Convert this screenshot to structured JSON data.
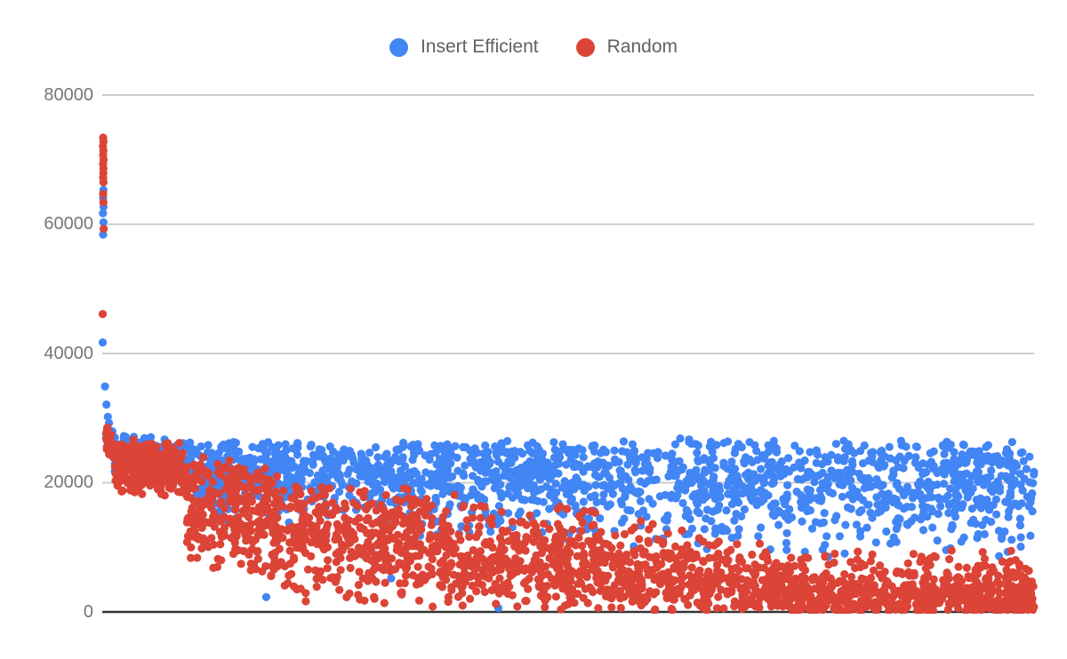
{
  "legend": {
    "items": [
      {
        "label": "Insert Efficient",
        "color": "#4285F4"
      },
      {
        "label": "Random",
        "color": "#DB4437"
      }
    ]
  },
  "chart_data": {
    "type": "scatter",
    "title": "",
    "legend_position": "top",
    "background": "#ffffff",
    "point_radius": 4.6,
    "seed": 1337,
    "y_axis": {
      "min": 0,
      "max": 80000,
      "tick_labels": [
        "80000",
        "60000",
        "40000",
        "20000",
        "0"
      ],
      "tick_values": [
        80000,
        60000,
        40000,
        20000,
        0
      ],
      "grid_color": "#cccccc",
      "baseline_color": "#333333",
      "label_color": "#757575",
      "grid_on": true
    },
    "x_axis": {
      "tick_labels": [],
      "x_unit": "fraction_of_plot_width"
    },
    "series": [
      {
        "name": "Insert Efficient",
        "color": "#4285F4",
        "points_outliers": [
          {
            "x": 0.0012,
            "v": 65300
          },
          {
            "x": 0.001,
            "v": 64100
          },
          {
            "x": 0.0014,
            "v": 62700
          },
          {
            "x": 0.0008,
            "v": 61700
          },
          {
            "x": 0.0012,
            "v": 60300
          },
          {
            "x": 0.001,
            "v": 58400
          },
          {
            "x": 0.0005,
            "v": 41700
          },
          {
            "x": 0.003,
            "v": 34900
          },
          {
            "x": 0.0045,
            "v": 32100
          },
          {
            "x": 0.006,
            "v": 30200
          },
          {
            "x": 0.176,
            "v": 2300
          },
          {
            "x": 0.31,
            "v": 5200
          },
          {
            "x": 0.425,
            "v": 600
          }
        ],
        "distribution_bands": [
          {
            "x0": 0.004,
            "x1": 0.012,
            "n": 20,
            "top0": 33000,
            "top1": 28500,
            "bot0": 25500,
            "bot1": 22000,
            "skew": 0
          },
          {
            "x0": 0.012,
            "x1": 0.1,
            "n": 170,
            "top0": 28000,
            "top1": 26500,
            "bot0": 20000,
            "bot1": 19000,
            "skew": -0.4
          },
          {
            "x0": 0.1,
            "x1": 0.3,
            "n": 400,
            "top0": 26500,
            "top1": 26000,
            "bot0": 14000,
            "bot1": 12500,
            "skew": -0.5
          },
          {
            "x0": 0.3,
            "x1": 0.62,
            "n": 600,
            "top0": 26500,
            "top1": 26500,
            "bot0": 11000,
            "bot1": 9500,
            "skew": -0.5
          },
          {
            "x0": 0.62,
            "x1": 1.0,
            "n": 730,
            "top0": 27000,
            "top1": 26500,
            "bot0": 8500,
            "bot1": 8000,
            "skew": -0.45
          }
        ]
      },
      {
        "name": "Random",
        "color": "#DB4437",
        "points_outliers": [
          {
            "x": 0.001,
            "v": 73400
          },
          {
            "x": 0.0013,
            "v": 72800
          },
          {
            "x": 0.0008,
            "v": 72100
          },
          {
            "x": 0.0012,
            "v": 71400
          },
          {
            "x": 0.001,
            "v": 70700
          },
          {
            "x": 0.0014,
            "v": 70000
          },
          {
            "x": 0.0009,
            "v": 69300
          },
          {
            "x": 0.0012,
            "v": 68600
          },
          {
            "x": 0.0011,
            "v": 67900
          },
          {
            "x": 0.001,
            "v": 67200
          },
          {
            "x": 0.0013,
            "v": 66500
          },
          {
            "x": 0.001,
            "v": 64700
          },
          {
            "x": 0.0012,
            "v": 63400
          },
          {
            "x": 0.0015,
            "v": 59300
          },
          {
            "x": 0.0005,
            "v": 46100
          }
        ],
        "distribution_bands": [
          {
            "x0": 0.004,
            "x1": 0.014,
            "n": 30,
            "top0": 29500,
            "top1": 27000,
            "bot0": 24000,
            "bot1": 21500,
            "skew": 0
          },
          {
            "x0": 0.014,
            "x1": 0.09,
            "n": 280,
            "top0": 27000,
            "top1": 26200,
            "bot0": 17500,
            "bot1": 17200,
            "skew": -0.2
          },
          {
            "x0": 0.09,
            "x1": 0.18,
            "n": 270,
            "top0": 24500,
            "top1": 22500,
            "bot0": 6500,
            "bot1": 4500,
            "skew": -0.35
          },
          {
            "x0": 0.18,
            "x1": 0.36,
            "n": 430,
            "top0": 21500,
            "top1": 19500,
            "bot0": 1200,
            "bot1": 300,
            "skew": -0.15
          },
          {
            "x0": 0.36,
            "x1": 0.56,
            "n": 460,
            "top0": 19000,
            "top1": 16000,
            "bot0": 0,
            "bot1": 0,
            "skew": 0.15
          },
          {
            "x0": 0.56,
            "x1": 0.73,
            "n": 350,
            "top0": 15500,
            "top1": 11000,
            "bot0": 0,
            "bot1": 0,
            "skew": 0.4
          },
          {
            "x0": 0.73,
            "x1": 1.0,
            "n": 620,
            "top0": 10500,
            "top1": 9800,
            "bot0": 0,
            "bot1": 0,
            "skew": 0.85
          }
        ]
      }
    ]
  }
}
